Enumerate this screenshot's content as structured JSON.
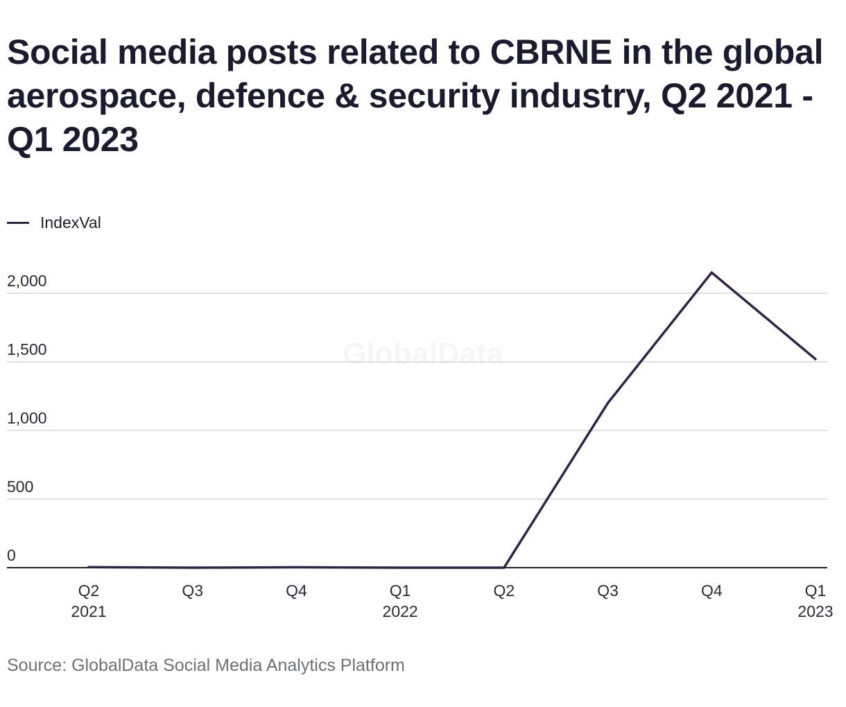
{
  "chart_data": {
    "type": "line",
    "title": "Social media posts related to CBRNE in the global aerospace, defence & security industry, Q2 2021 - Q1 2023",
    "categories": [
      [
        "Q2",
        "2021"
      ],
      [
        "Q3",
        ""
      ],
      [
        "Q4",
        ""
      ],
      [
        "Q1",
        "2022"
      ],
      [
        "Q2",
        ""
      ],
      [
        "Q3",
        ""
      ],
      [
        "Q4",
        ""
      ],
      [
        "Q1",
        "2023"
      ]
    ],
    "series": [
      {
        "name": "IndexVal",
        "values": [
          4,
          0,
          3,
          0,
          0,
          1200,
          2150,
          1520
        ],
        "color": "#2f2346"
      }
    ],
    "yticks": [
      0,
      500,
      1000,
      1500,
      2000
    ],
    "ytick_labels": [
      "0",
      "500",
      "1,000",
      "1,500",
      "2,000"
    ],
    "ylim": [
      0,
      2000
    ],
    "xlabel": "",
    "ylabel": "",
    "grid": true,
    "legend_position": "top-left"
  },
  "watermark": "GlobalData",
  "source": "Source: GlobalData Social Media Analytics Platform"
}
